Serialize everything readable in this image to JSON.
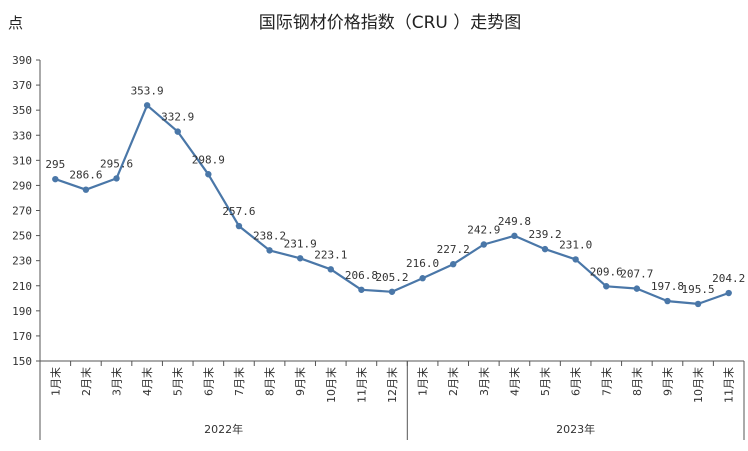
{
  "chart_data": {
    "type": "line",
    "title": "国际钢材价格指数（CRU ）走势图",
    "ylabel": "点",
    "xlabel": "",
    "ylim": [
      150,
      390
    ],
    "yticks": [
      150,
      170,
      190,
      210,
      230,
      250,
      270,
      290,
      310,
      330,
      350,
      370,
      390
    ],
    "grid": false,
    "groups": [
      {
        "label": "2022年",
        "count": 12
      },
      {
        "label": "2023年",
        "count": 11
      }
    ],
    "categories": [
      "1月末",
      "2月末",
      "3月末",
      "4月末",
      "5月末",
      "6月末",
      "7月末",
      "8月末",
      "9月末",
      "10月末",
      "11月末",
      "12月末",
      "1月末",
      "2月末",
      "3月末",
      "4月末",
      "5月末",
      "6月末",
      "7月末",
      "8月末",
      "9月末",
      "10月末",
      "11月末"
    ],
    "values": [
      295,
      286.6,
      295.6,
      353.9,
      332.9,
      298.9,
      257.6,
      238.2,
      231.9,
      223.1,
      206.8,
      205.2,
      216.0,
      227.2,
      242.9,
      249.8,
      239.2,
      231.0,
      209.6,
      207.7,
      197.8,
      195.5,
      204.2
    ],
    "data_labels": [
      "295",
      "286.6",
      "295.6",
      "353.9",
      "332.9",
      "298.9",
      "257.6",
      "238.2",
      "231.9",
      "223.1",
      "206.8",
      "205.2",
      "216.0",
      "227.2",
      "242.9",
      "249.8",
      "239.2",
      "231.0",
      "209.6",
      "207.7",
      "197.8",
      "195.5",
      "204.2"
    ],
    "series_color": "#4a77a8"
  }
}
